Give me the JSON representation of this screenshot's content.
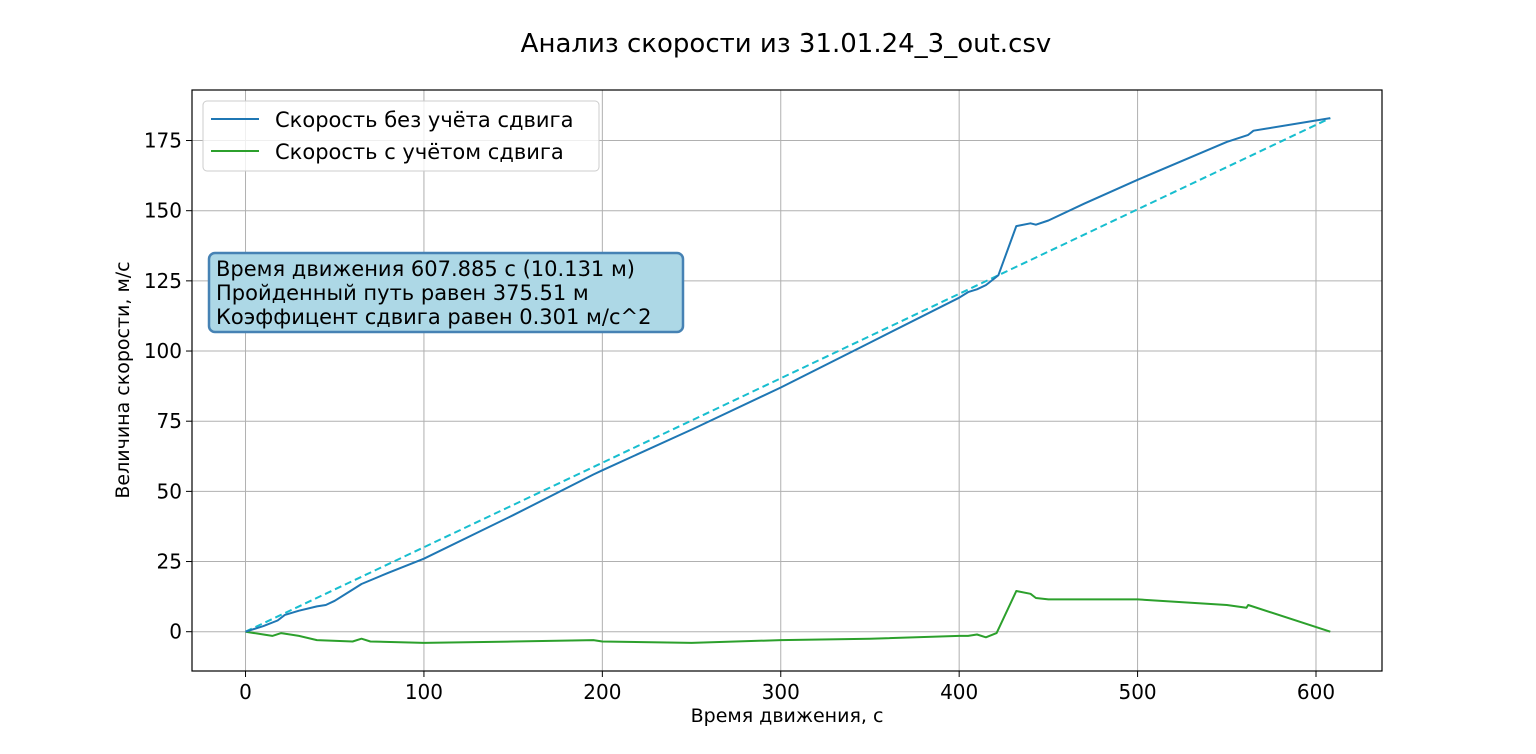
{
  "chart_data": {
    "type": "line",
    "title": "Анализ скорости из  31.01.24_3_out.csv",
    "xlabel": "Время движения, с",
    "ylabel": "Величина скорости, м/с",
    "xlim": [
      -30,
      637
    ],
    "ylim": [
      -14,
      193
    ],
    "xticks": [
      0,
      100,
      200,
      300,
      400,
      500,
      600
    ],
    "yticks": [
      0,
      25,
      50,
      75,
      100,
      125,
      150,
      175
    ],
    "grid": true,
    "legend_position": "top-left",
    "series": [
      {
        "name": "Скорость без учёта сдвига",
        "color": "#1f77b4",
        "style": "solid",
        "x": [
          0,
          10,
          18,
          22,
          30,
          40,
          45,
          50,
          60,
          65,
          80,
          100,
          150,
          195,
          200,
          250,
          300,
          350,
          400,
          405,
          410,
          415,
          420,
          422,
          432,
          440,
          443,
          450,
          470,
          500,
          550,
          562,
          565,
          608
        ],
        "y": [
          0,
          2,
          4,
          6,
          7.5,
          9,
          9.5,
          11,
          15,
          17,
          21,
          26,
          41.5,
          56,
          57.5,
          72,
          87,
          103,
          119,
          121,
          122,
          123.5,
          126,
          127,
          144.5,
          145.5,
          145,
          146.5,
          152.5,
          161,
          174.5,
          177,
          178.5,
          183
        ]
      },
      {
        "name": "Скорость с учётом сдвига",
        "color": "#2ca02c",
        "style": "solid",
        "x": [
          0,
          15,
          20,
          30,
          40,
          60,
          65,
          70,
          100,
          150,
          195,
          200,
          250,
          300,
          350,
          400,
          405,
          410,
          415,
          421,
          432,
          440,
          443,
          450,
          470,
          500,
          550,
          561,
          562,
          608
        ],
        "y": [
          0,
          -1.5,
          -0.5,
          -1.5,
          -3,
          -3.5,
          -2.5,
          -3.5,
          -4,
          -3.5,
          -3,
          -3.5,
          -4,
          -3,
          -2.5,
          -1.5,
          -1.5,
          -1,
          -2,
          -0.5,
          14.5,
          13.5,
          12,
          11.5,
          11.5,
          11.5,
          9.5,
          8.5,
          9.5,
          0
        ]
      },
      {
        "color": "#17becf",
        "style": "dashed",
        "x": [
          0,
          608
        ],
        "y": [
          0,
          183
        ]
      }
    ],
    "annotation": {
      "lines": [
        "Время движения 607.885 с (10.131 м)",
        "Пройденный путь равен 375.51 м",
        "Коэффицент сдвига равен 0.301 м/с^2"
      ],
      "background": "#add8e6",
      "border": "#4682b4"
    }
  }
}
